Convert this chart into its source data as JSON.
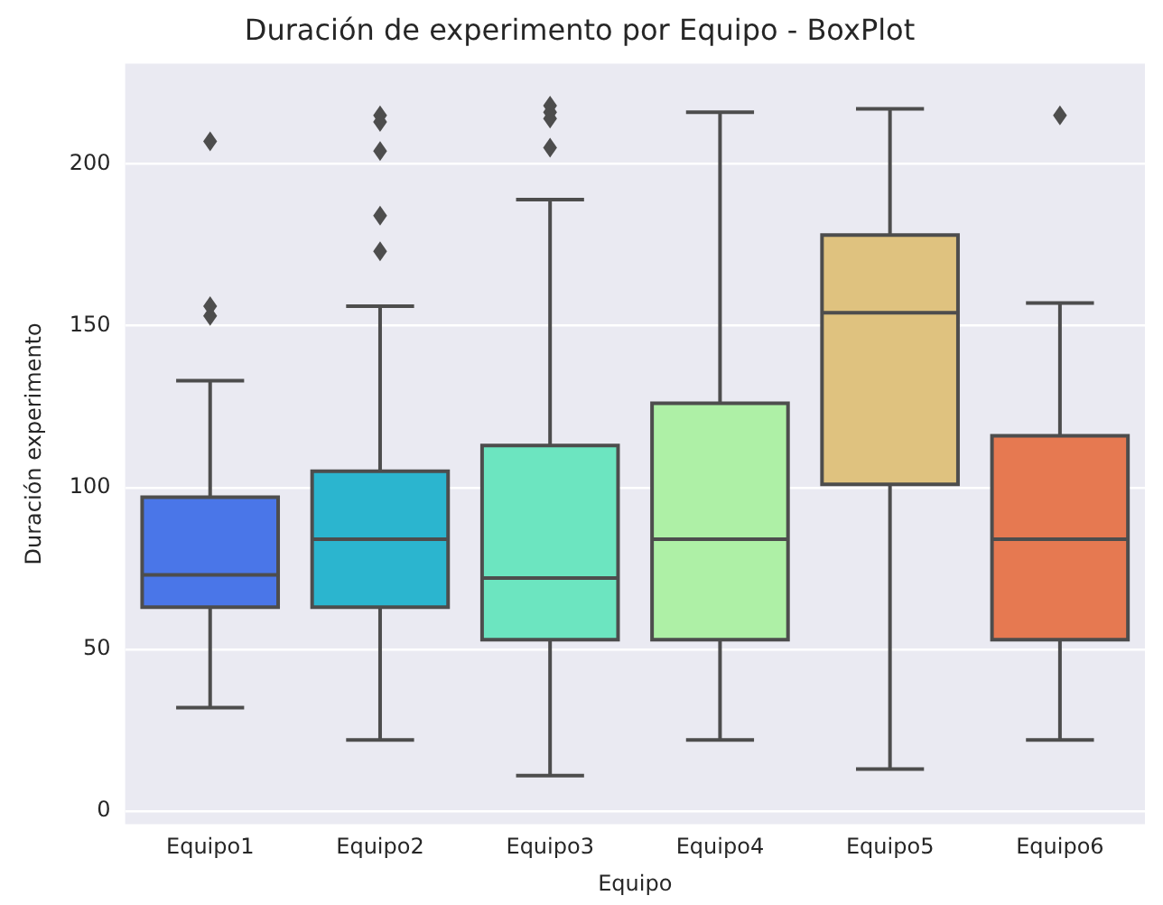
{
  "chart_data": {
    "type": "box",
    "title": "Duración de experimento por Equipo - BoxPlot",
    "xlabel": "Equipo",
    "ylabel": "Duración experimento",
    "categories": [
      "Equipo1",
      "Equipo2",
      "Equipo3",
      "Equipo4",
      "Equipo5",
      "Equipo6"
    ],
    "colors": [
      "#4a76e8",
      "#2bb5cf",
      "#6ce5c0",
      "#aef0a6",
      "#dfc27f",
      "#e67951"
    ],
    "boxes": [
      {
        "low": 32,
        "q1": 63,
        "median": 73,
        "q3": 97,
        "high": 133,
        "outliers": [
          207,
          156,
          153
        ]
      },
      {
        "low": 22,
        "q1": 63,
        "median": 84,
        "q3": 105,
        "high": 156,
        "outliers": [
          215,
          213,
          204,
          184,
          173
        ]
      },
      {
        "low": 11,
        "q1": 53,
        "median": 72,
        "q3": 113,
        "high": 189,
        "outliers": [
          218,
          216,
          214,
          205
        ]
      },
      {
        "low": 22,
        "q1": 53,
        "median": 84,
        "q3": 126,
        "high": 216
      },
      {
        "low": 13,
        "q1": 101,
        "median": 154,
        "q3": 178,
        "high": 217
      },
      {
        "low": 22,
        "q1": 53,
        "median": 84,
        "q3": 116,
        "high": 157,
        "outliers": [
          215
        ]
      }
    ],
    "ylim": [
      -4,
      231
    ],
    "yticks": [
      0,
      50,
      100,
      150,
      200
    ],
    "grid": "y",
    "marker": "diamond"
  }
}
